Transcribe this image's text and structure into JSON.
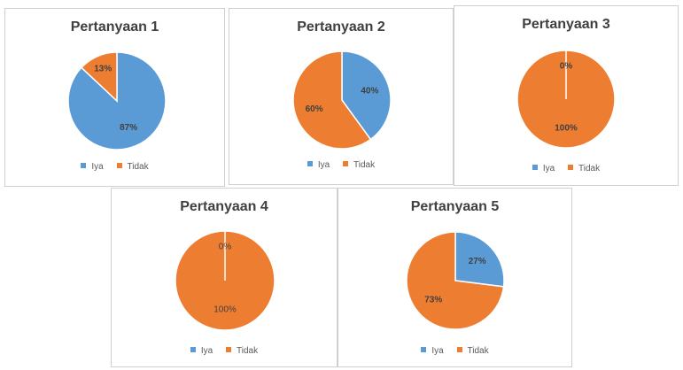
{
  "colors": {
    "iya": "#5b9bd5",
    "tidak": "#ed7d31"
  },
  "legend": {
    "iya": "Iya",
    "tidak": "Tidak"
  },
  "chart_data": [
    {
      "type": "pie",
      "title": "Pertanyaan 1",
      "categories": [
        "Iya",
        "Tidak"
      ],
      "values": [
        87,
        13
      ],
      "labels": [
        "87%",
        "13%"
      ],
      "legend_position": "bottom"
    },
    {
      "type": "pie",
      "title": "Pertanyaan 2",
      "categories": [
        "Iya",
        "Tidak"
      ],
      "values": [
        40,
        60
      ],
      "labels": [
        "40%",
        "60%"
      ],
      "legend_position": "bottom"
    },
    {
      "type": "pie",
      "title": "Pertanyaan 3",
      "categories": [
        "Iya",
        "Tidak"
      ],
      "values": [
        0,
        100
      ],
      "labels": [
        "0%",
        "100%"
      ],
      "legend_position": "bottom"
    },
    {
      "type": "pie",
      "title": "Pertanyaan 4",
      "categories": [
        "Iya",
        "Tidak"
      ],
      "values": [
        0,
        100
      ],
      "labels": [
        "0%",
        "100%"
      ],
      "legend_position": "bottom"
    },
    {
      "type": "pie",
      "title": "Pertanyaan 5",
      "categories": [
        "Iya",
        "Tidak"
      ],
      "values": [
        27,
        73
      ],
      "labels": [
        "27%",
        "73%"
      ],
      "legend_position": "bottom"
    }
  ]
}
